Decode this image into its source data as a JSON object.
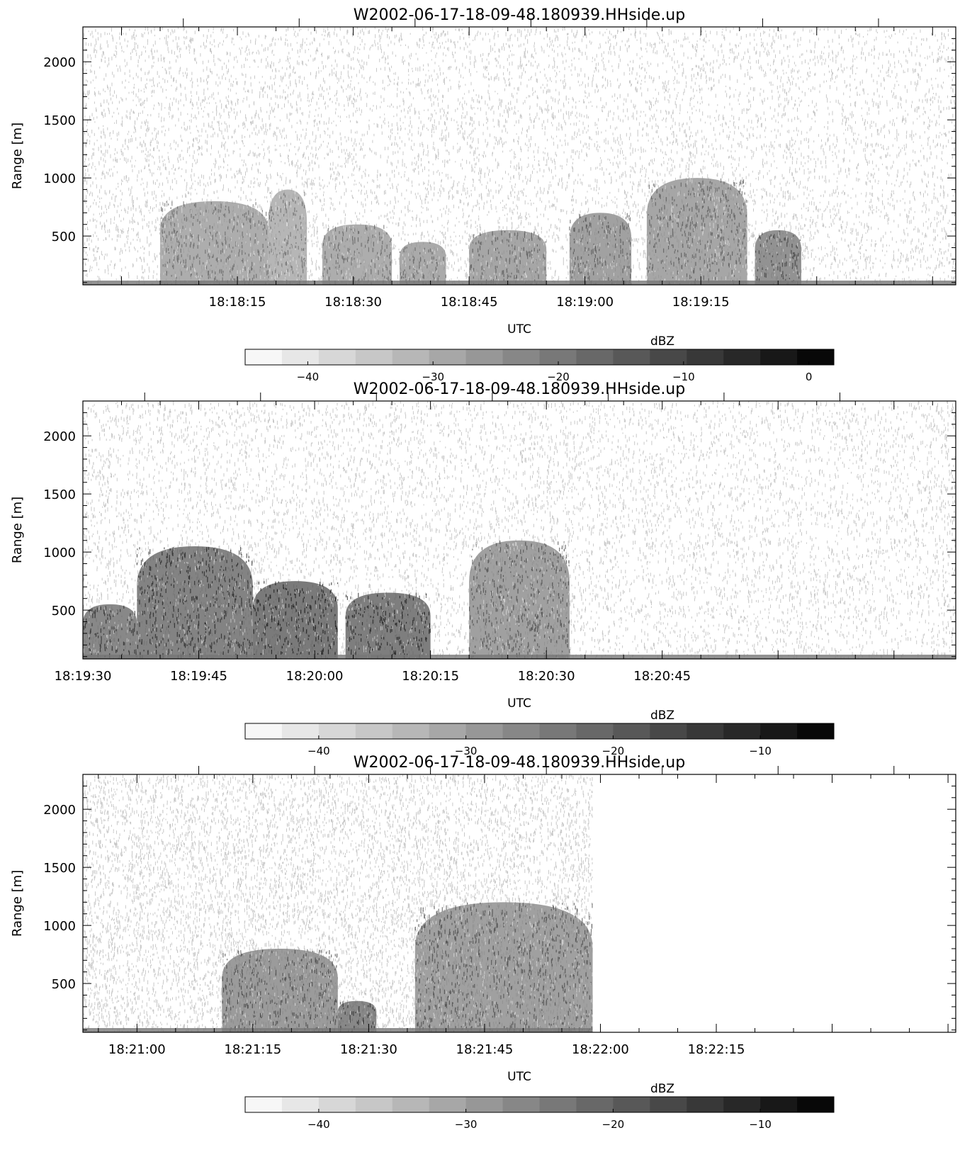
{
  "chart_data": [
    {
      "type": "heatmap",
      "title": "W2002-06-17-18-09-48.180939.HHside.up",
      "xlabel": "UTC",
      "ylabel": "Range [m]",
      "ylim": [
        80,
        2300
      ],
      "x_range_seconds": [
        65875,
        65988
      ],
      "xticks": [
        "18:18:15",
        "18:18:30",
        "18:18:45",
        "18:19:00",
        "18:19:15"
      ],
      "yticks": [
        500,
        1000,
        1500,
        2000
      ],
      "colorbar": {
        "label": "dBZ",
        "range": [
          -45,
          2
        ],
        "ticks": [
          -40,
          -30,
          -20,
          -10,
          0
        ],
        "color_low": "#ffffff",
        "color_high": "#000000"
      },
      "echo_regions": [
        {
          "x_start": "18:18:05",
          "x_end": "18:18:19",
          "top_m": 800,
          "dbz": -25
        },
        {
          "x_start": "18:18:19",
          "x_end": "18:18:24",
          "top_m": 900,
          "dbz": -27
        },
        {
          "x_start": "18:18:26",
          "x_end": "18:18:35",
          "top_m": 600,
          "dbz": -25
        },
        {
          "x_start": "18:18:36",
          "x_end": "18:18:42",
          "top_m": 450,
          "dbz": -24
        },
        {
          "x_start": "18:18:45",
          "x_end": "18:18:55",
          "top_m": 550,
          "dbz": -23
        },
        {
          "x_start": "18:18:58",
          "x_end": "18:19:06",
          "top_m": 700,
          "dbz": -22
        },
        {
          "x_start": "18:19:08",
          "x_end": "18:19:21",
          "top_m": 1000,
          "dbz": -23
        },
        {
          "x_start": "18:19:22",
          "x_end": "18:19:28",
          "top_m": 550,
          "dbz": -18
        }
      ]
    },
    {
      "type": "heatmap",
      "title": "W2002-06-17-18-09-48.180939.HHside.up",
      "xlabel": "UTC",
      "ylabel": "Range [m]",
      "ylim": [
        80,
        2300
      ],
      "x_range_seconds": [
        65970,
        66083
      ],
      "xticks": [
        "18:19:30",
        "18:19:45",
        "18:20:00",
        "18:20:15",
        "18:20:30",
        "18:20:45"
      ],
      "yticks": [
        500,
        1000,
        1500,
        2000
      ],
      "colorbar": {
        "label": "dBZ",
        "range": [
          -45,
          -5
        ],
        "ticks": [
          -40,
          -30,
          -20,
          -10
        ],
        "color_low": "#ffffff",
        "color_high": "#000000"
      },
      "echo_regions": [
        {
          "x_start": "18:19:30",
          "x_end": "18:19:37",
          "top_m": 550,
          "dbz": -20
        },
        {
          "x_start": "18:19:37",
          "x_end": "18:19:52",
          "top_m": 1050,
          "dbz": -19
        },
        {
          "x_start": "18:19:52",
          "x_end": "18:20:03",
          "top_m": 750,
          "dbz": -17
        },
        {
          "x_start": "18:20:04",
          "x_end": "18:20:15",
          "top_m": 650,
          "dbz": -18
        },
        {
          "x_start": "18:20:20",
          "x_end": "18:20:33",
          "top_m": 1100,
          "dbz": -25
        }
      ]
    },
    {
      "type": "heatmap",
      "title": "W2002-06-17-18-09-48.180939.HHside.up",
      "xlabel": "UTC",
      "ylabel": "Range [m]",
      "ylim": [
        80,
        2300
      ],
      "x_range_seconds": [
        66053,
        66166
      ],
      "xticks": [
        "18:21:00",
        "18:21:15",
        "18:21:30",
        "18:21:45",
        "18:22:00",
        "18:22:15"
      ],
      "yticks": [
        500,
        1000,
        1500,
        2000
      ],
      "data_end": "18:21:59",
      "colorbar": {
        "label": "dBZ",
        "range": [
          -45,
          -5
        ],
        "ticks": [
          -40,
          -30,
          -20,
          -10
        ],
        "color_low": "#ffffff",
        "color_high": "#000000"
      },
      "echo_regions": [
        {
          "x_start": "18:21:11",
          "x_end": "18:21:26",
          "top_m": 800,
          "dbz": -24
        },
        {
          "x_start": "18:21:26",
          "x_end": "18:21:31",
          "top_m": 350,
          "dbz": -20
        },
        {
          "x_start": "18:21:36",
          "x_end": "18:21:59",
          "top_m": 1200,
          "dbz": -25
        }
      ]
    }
  ]
}
